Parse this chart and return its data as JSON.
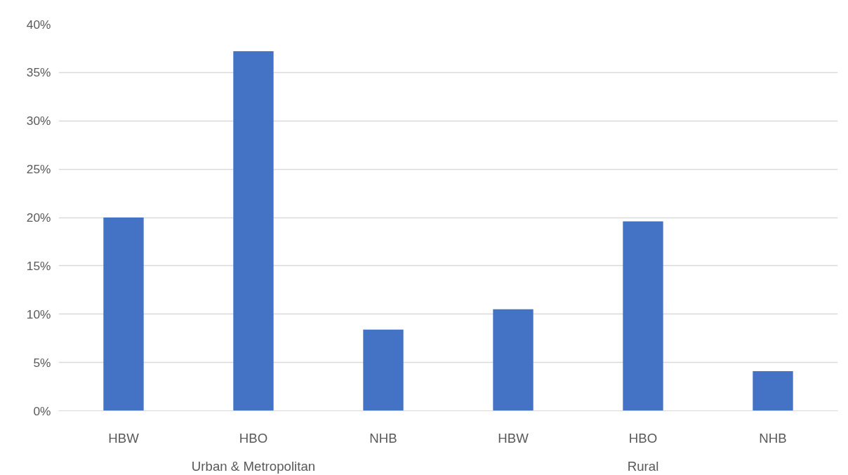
{
  "chart_data": {
    "type": "bar",
    "categories": [
      "HBW",
      "HBO",
      "NHB",
      "HBW",
      "HBO",
      "NHB"
    ],
    "values": [
      20,
      37.2,
      8.4,
      10.5,
      19.6,
      4.1
    ],
    "color": "#4472c4",
    "ylim": [
      0,
      40
    ],
    "yticks": [
      {
        "value": 0,
        "label": "0%"
      },
      {
        "value": 5,
        "label": "5%"
      },
      {
        "value": 10,
        "label": "10%"
      },
      {
        "value": 15,
        "label": "15%"
      },
      {
        "value": 20,
        "label": "20%"
      },
      {
        "value": 25,
        "label": "25%"
      },
      {
        "value": 30,
        "label": "30%"
      },
      {
        "value": 35,
        "label": "35%"
      },
      {
        "value": 40,
        "label": "40%"
      }
    ],
    "grid": "y",
    "annotations": [
      "Urban & Metropolitan",
      "Rural"
    ]
  }
}
